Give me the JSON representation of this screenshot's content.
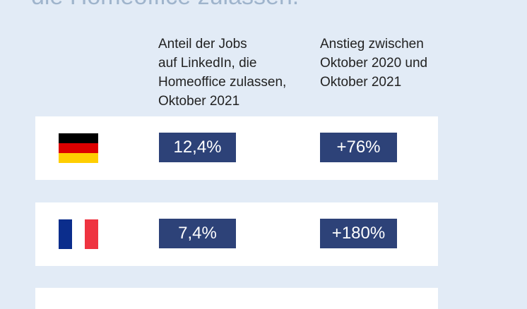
{
  "title_partial": "die Homeoffice zulassen.",
  "headers": {
    "share": [
      "Anteil der Jobs",
      "auf LinkedIn, die",
      "Homeoffice zulassen,",
      "Oktober 2021"
    ],
    "growth": [
      "Anstieg zwischen",
      "Oktober 2020 und",
      "Oktober 2021"
    ]
  },
  "rows": [
    {
      "flag_icon": "germany-flag-icon",
      "flag_colors": [
        "#000000",
        "#dd0000",
        "#ffce00"
      ],
      "share": "12,4%",
      "growth": "+76%"
    },
    {
      "flag_icon": "france-flag-icon",
      "flag_colors": [
        "#0b2d8c",
        "#ffffff",
        "#ef3340"
      ],
      "share": "7,4%",
      "growth": "+180%"
    }
  ],
  "colors": {
    "background": "#e2ebf6",
    "value_box": "#2d4278",
    "card": "#ffffff"
  }
}
